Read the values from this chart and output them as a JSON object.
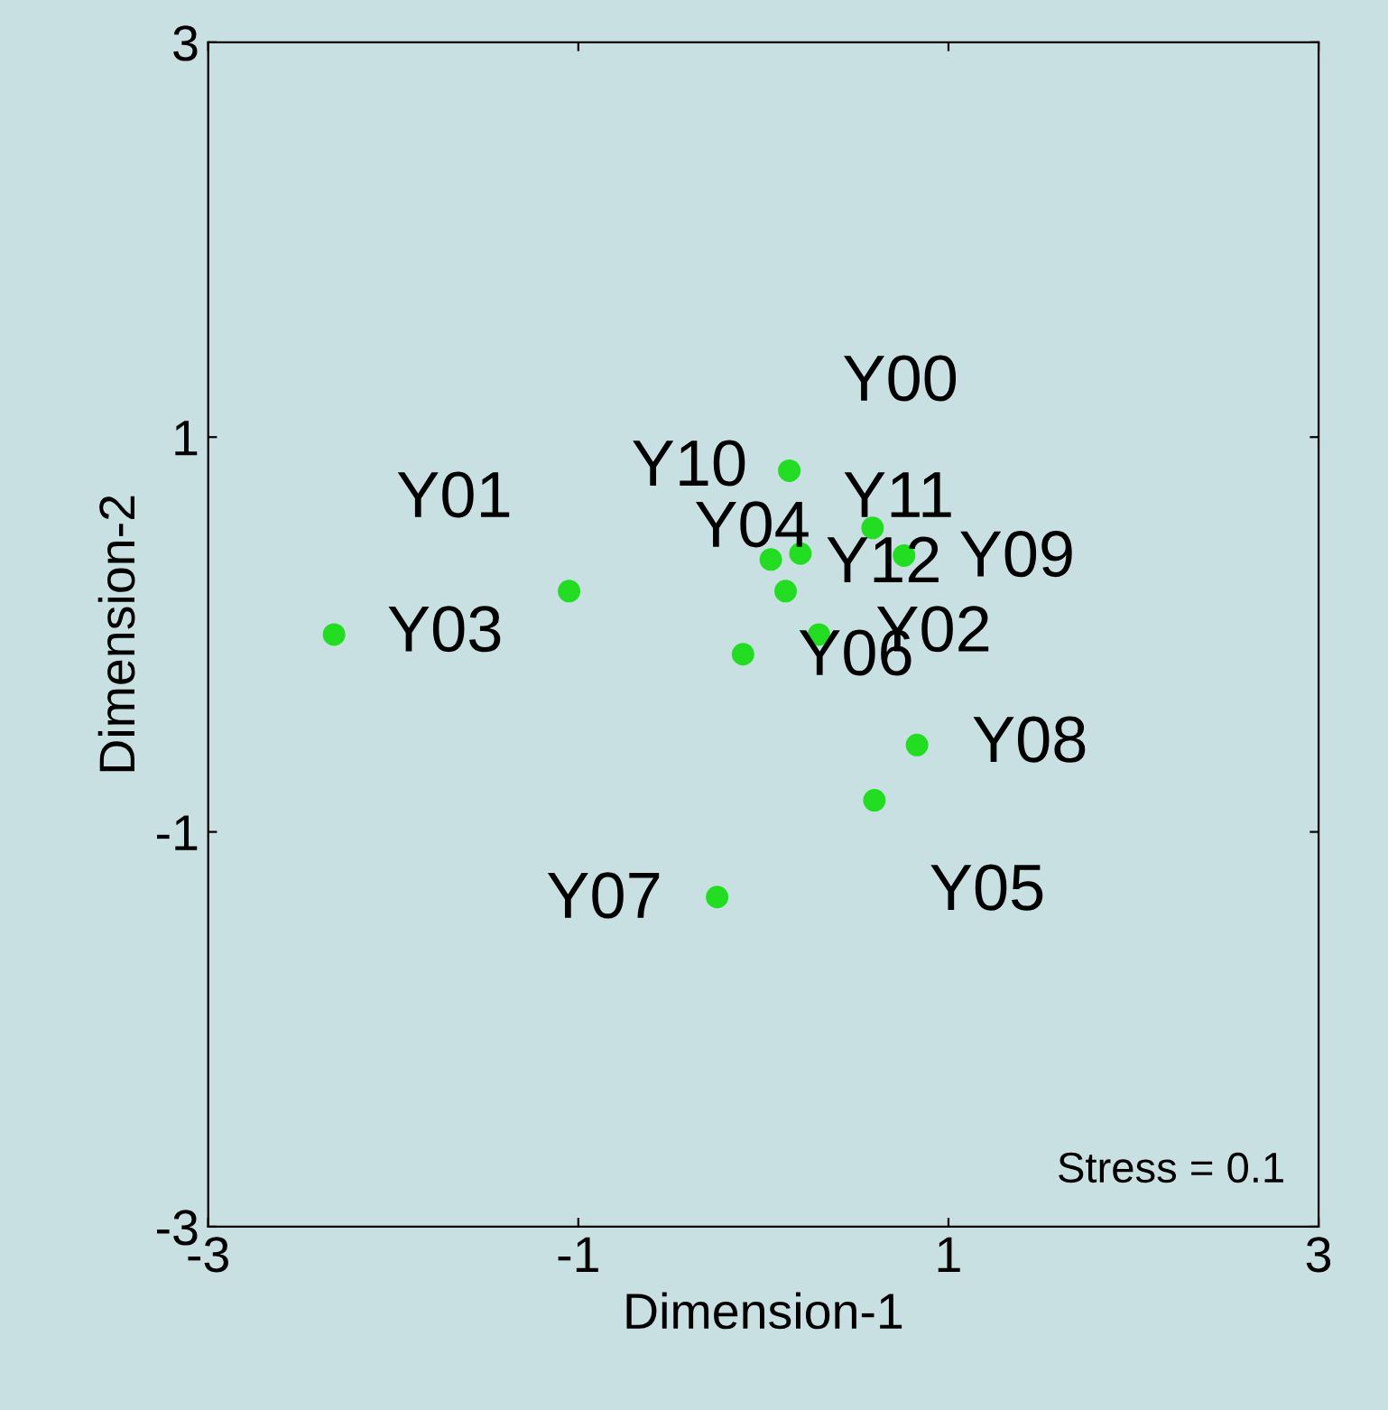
{
  "chart_data": {
    "type": "scatter",
    "xlabel": "Dimension-1",
    "ylabel": "Dimension-2",
    "x": [
      0.14,
      0.59,
      0.76,
      0.04,
      0.2,
      0.12,
      0.3,
      -0.11,
      0.83,
      0.6,
      -0.25,
      -1.05,
      -2.32
    ],
    "series": [
      {
        "color": "#22dd22",
        "values": [
          0.83,
          0.54,
          0.4,
          0.38,
          0.41,
          0.22,
          0.0,
          -0.1,
          -0.56,
          -0.84,
          -1.33,
          0.22,
          0.0
        ]
      }
    ],
    "marker": "circle",
    "xlim": [
      -3,
      3
    ],
    "ylim": [
      -3,
      3
    ],
    "xticks": [
      -3,
      -1,
      1,
      3
    ],
    "yticks": [
      -3,
      -1,
      1,
      3
    ],
    "grid": false,
    "legend": false,
    "annotations": [
      {
        "text": "Y00",
        "x": 0.14,
        "y": 0.83
      },
      {
        "text": "Y10",
        "x": 0.04,
        "y": 0.38
      },
      {
        "text": "Y11",
        "x": 0.59,
        "y": 0.54
      },
      {
        "text": "Y04",
        "x": 0.2,
        "y": 0.41
      },
      {
        "text": "Y12",
        "x": 0.12,
        "y": 0.22
      },
      {
        "text": "Y09",
        "x": 0.76,
        "y": 0.4
      },
      {
        "text": "Y02",
        "x": 0.3,
        "y": 0.0
      },
      {
        "text": "Y06",
        "x": -0.11,
        "y": -0.1
      },
      {
        "text": "Y08",
        "x": 0.83,
        "y": -0.56
      },
      {
        "text": "Y05",
        "x": 0.6,
        "y": -0.84
      },
      {
        "text": "Y07",
        "x": -0.25,
        "y": -1.33
      },
      {
        "text": "Y01",
        "x": -1.05,
        "y": 0.22
      },
      {
        "text": "Y03",
        "x": -2.32,
        "y": 0.0
      },
      "Stress = 0.1"
    ]
  }
}
